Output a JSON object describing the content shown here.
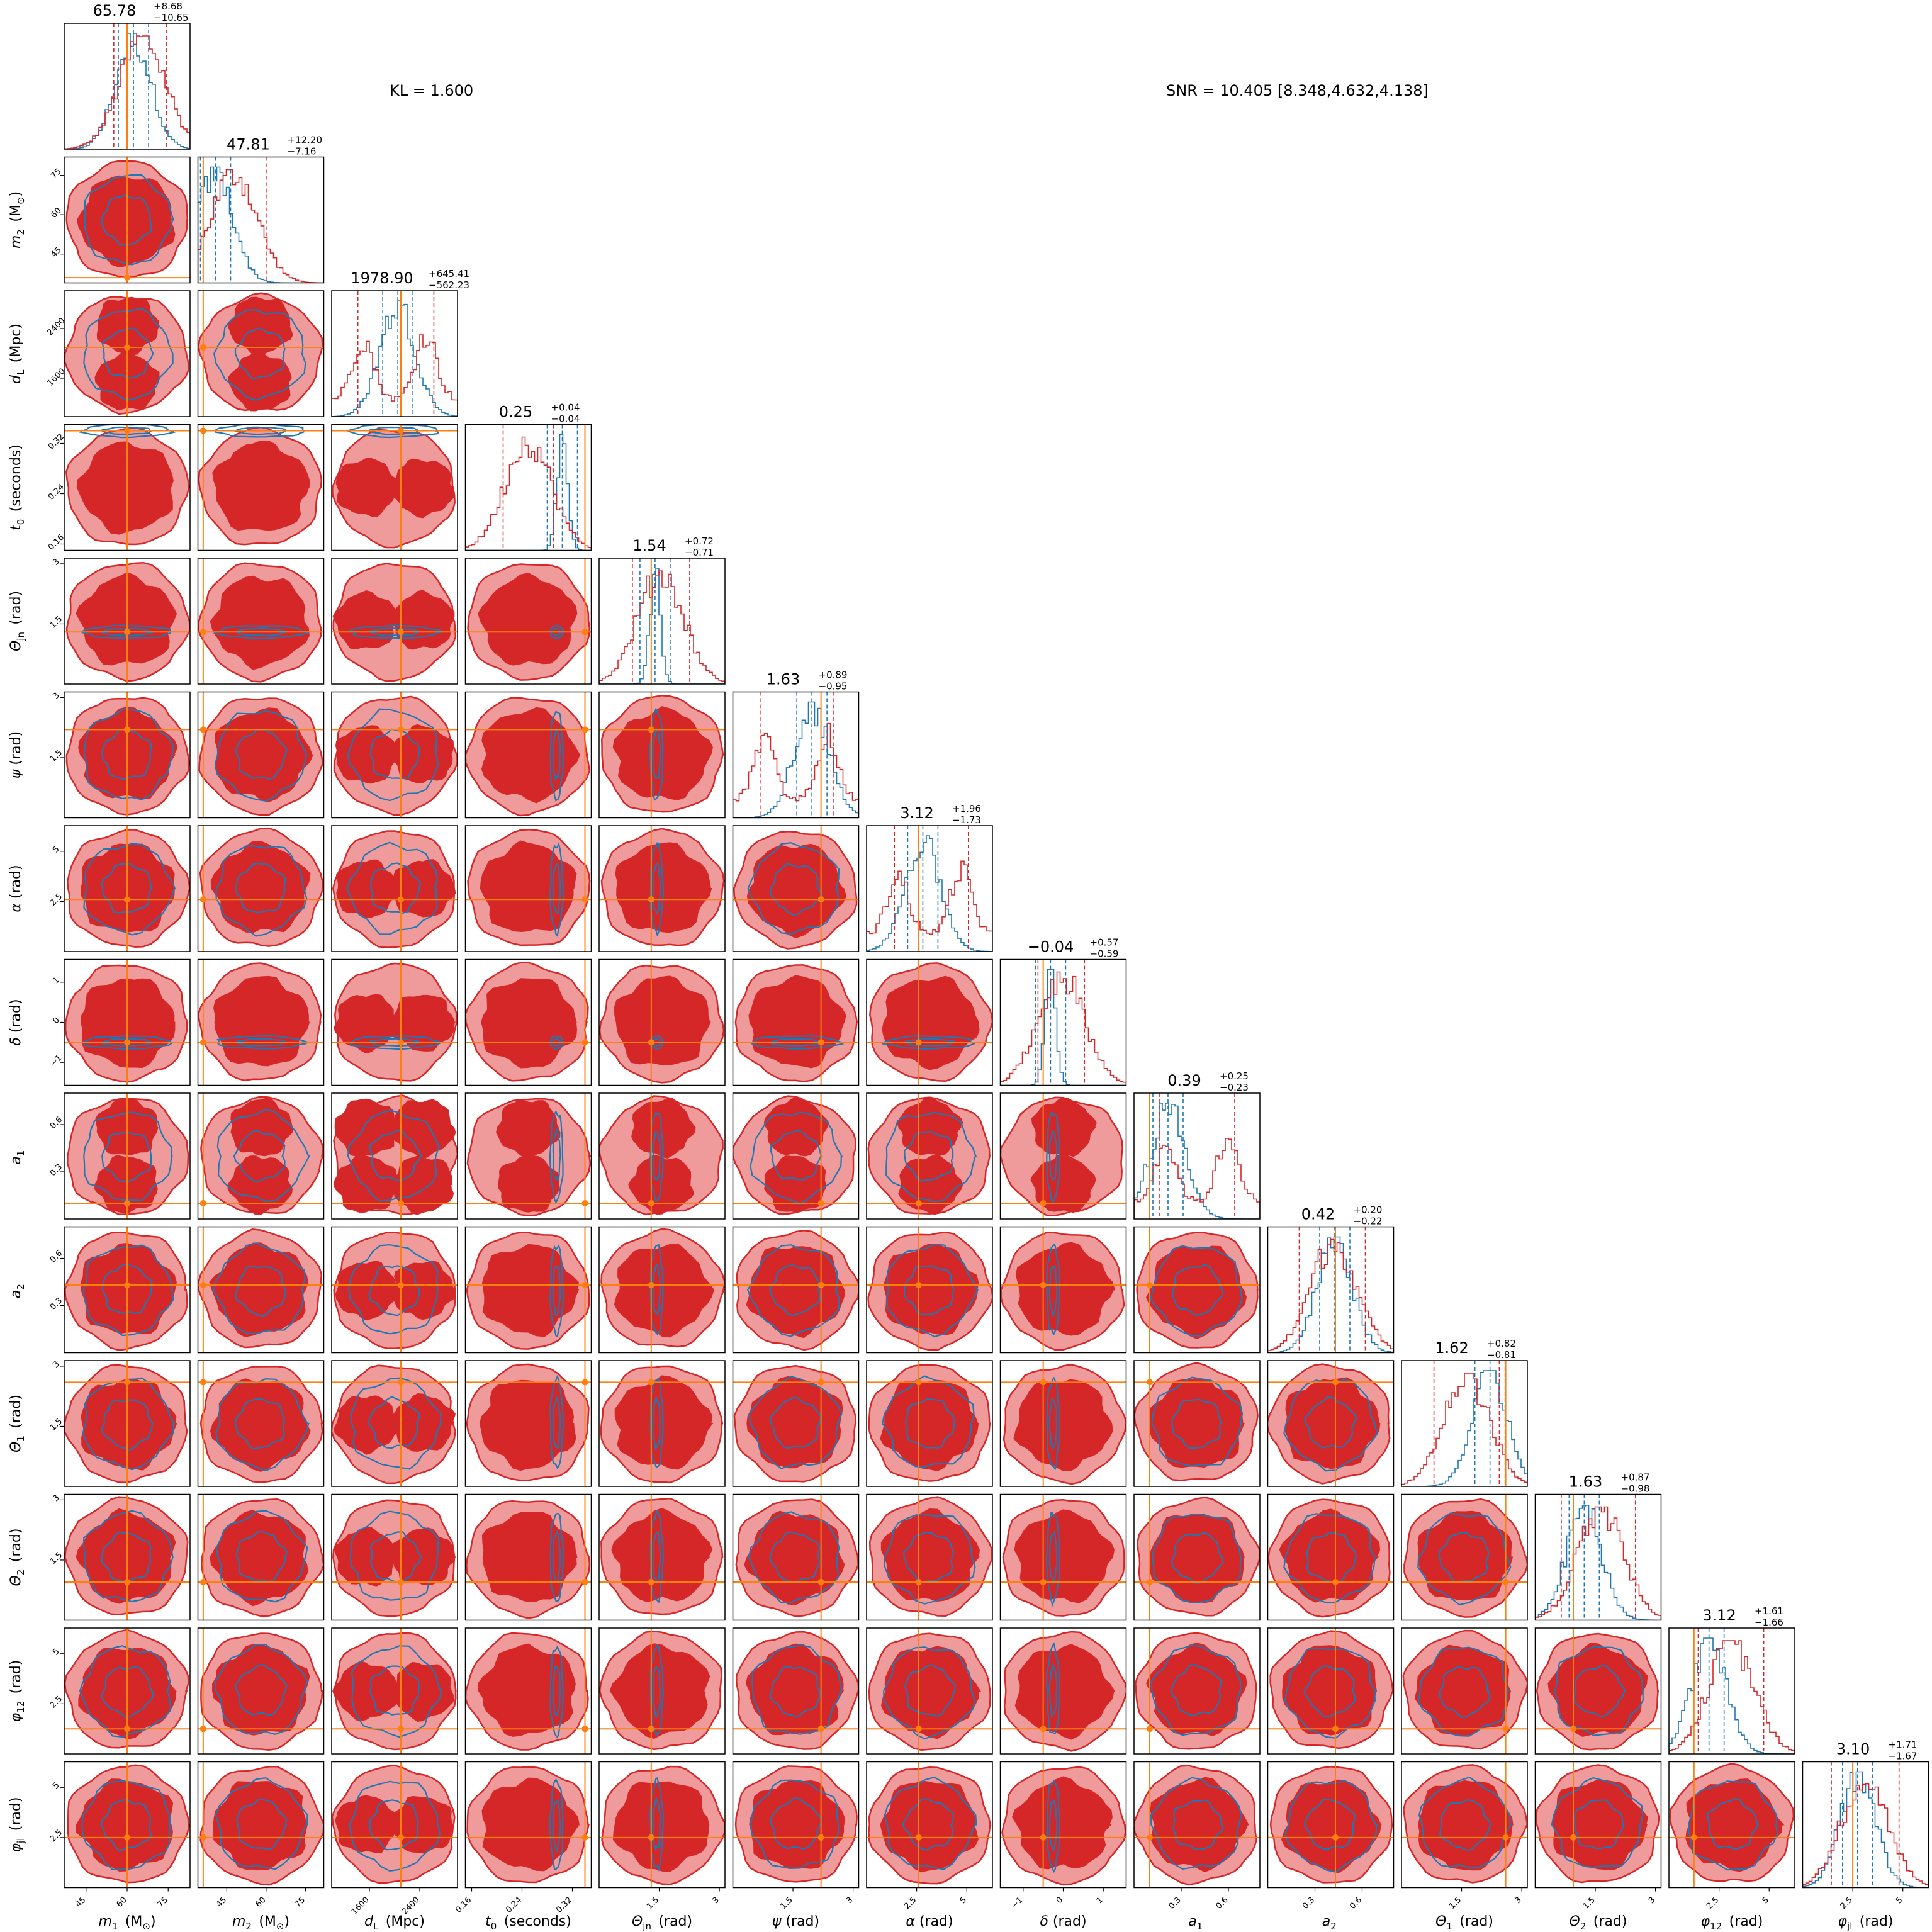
{
  "header": {
    "kl_text": "KL = 1.600",
    "snr_text": "SNR = 10.405 [8.348,4.632,4.138]"
  },
  "chart_data": {
    "type": "corner",
    "title": "",
    "colors": {
      "series_a": "#d62728",
      "series_a_light": "#ef9a9b",
      "series_b": "#1f77b4",
      "truth": "#ff7f0e"
    },
    "parameters": [
      {
        "name": "m1",
        "xlabel": "m_1 (M_⊙)",
        "ylabel": "",
        "range": [
          37,
          83
        ],
        "ticks": [
          45,
          60,
          75
        ],
        "truth": 60,
        "median": 65.78,
        "plus": "8.68",
        "minus": "10.65",
        "median_text": "65.78",
        "plus_text": "+8.68",
        "minus_text": "−10.65"
      },
      {
        "name": "m2",
        "xlabel": "m_2 (M_⊙)",
        "ylabel": "m_2 (M_⊙)",
        "range": [
          34,
          82
        ],
        "ticks": [
          45,
          60,
          75
        ],
        "truth": 36,
        "median": 47.81,
        "plus": "12.20",
        "minus": "7.16",
        "median_text": "47.81",
        "plus_text": "+12.20",
        "minus_text": "−7.16"
      },
      {
        "name": "dL",
        "xlabel": "d_L (Mpc)",
        "ylabel": "d_L (Mpc)",
        "range": [
          1000,
          3000
        ],
        "ticks": [
          1600,
          2400
        ],
        "truth": 2100,
        "median": 1978.9,
        "plus": "645.41",
        "minus": "562.23",
        "median_text": "1978.90",
        "plus_text": "+645.41",
        "minus_text": "−562.23"
      },
      {
        "name": "t0",
        "xlabel": "t_0 (seconds)",
        "ylabel": "t_0 (seconds)",
        "range": [
          0.15,
          0.35
        ],
        "ticks": [
          0.16,
          0.24,
          0.32
        ],
        "truth": 0.34,
        "median": 0.25,
        "plus": "0.04",
        "minus": "0.04",
        "median_text": "0.25",
        "plus_text": "+0.04",
        "minus_text": "−0.04"
      },
      {
        "name": "theta_jn",
        "xlabel": "Θ_jn (rad)",
        "ylabel": "Θ_jn (rad)",
        "range": [
          0,
          3.14
        ],
        "ticks": [
          1.5,
          3.0
        ],
        "truth": 1.3,
        "median": 1.54,
        "plus": "0.72",
        "minus": "0.71",
        "median_text": "1.54",
        "plus_text": "+0.72",
        "minus_text": "−0.71"
      },
      {
        "name": "psi",
        "xlabel": "ψ (rad)",
        "ylabel": "ψ (rad)",
        "range": [
          0,
          3.14
        ],
        "ticks": [
          1.5,
          3.0
        ],
        "truth": 2.2,
        "median": 1.63,
        "plus": "0.89",
        "minus": "0.95",
        "median_text": "1.63",
        "plus_text": "+0.89",
        "minus_text": "−0.95"
      },
      {
        "name": "alpha",
        "xlabel": "α (rad)",
        "ylabel": "α (rad)",
        "range": [
          0,
          6.28
        ],
        "ticks": [
          2.5,
          5.0
        ],
        "truth": 2.6,
        "median": 3.12,
        "plus": "1.96",
        "minus": "1.73",
        "median_text": "3.12",
        "plus_text": "+1.96",
        "minus_text": "−1.73"
      },
      {
        "name": "delta",
        "xlabel": "δ (rad)",
        "ylabel": "δ (rad)",
        "range": [
          -1.57,
          1.57
        ],
        "ticks": [
          -1,
          0,
          1
        ],
        "truth": -0.5,
        "median": -0.04,
        "plus": "0.57",
        "minus": "0.59",
        "median_text": "−0.04",
        "plus_text": "+0.57",
        "minus_text": "−0.59"
      },
      {
        "name": "a1",
        "xlabel": "a_1",
        "ylabel": "a_1",
        "range": [
          0,
          0.8
        ],
        "ticks": [
          0.3,
          0.6
        ],
        "truth": 0.1,
        "median": 0.39,
        "plus": "0.25",
        "minus": "0.23",
        "median_text": "0.39",
        "plus_text": "+0.25",
        "minus_text": "−0.23"
      },
      {
        "name": "a2",
        "xlabel": "a_2",
        "ylabel": "a_2",
        "range": [
          0,
          0.8
        ],
        "ticks": [
          0.3,
          0.6
        ],
        "truth": 0.43,
        "median": 0.42,
        "plus": "0.20",
        "minus": "0.22",
        "median_text": "0.42",
        "plus_text": "+0.20",
        "minus_text": "−0.22"
      },
      {
        "name": "theta1",
        "xlabel": "Θ_1 (rad)",
        "ylabel": "Θ_1 (rad)",
        "range": [
          0,
          3.14
        ],
        "ticks": [
          1.5,
          3.0
        ],
        "truth": 2.6,
        "median": 1.62,
        "plus": "0.82",
        "minus": "0.81",
        "median_text": "1.62",
        "plus_text": "+0.82",
        "minus_text": "−0.81"
      },
      {
        "name": "theta2",
        "xlabel": "Θ_2 (rad)",
        "ylabel": "Θ_2 (rad)",
        "range": [
          0,
          3.14
        ],
        "ticks": [
          1.5,
          3.0
        ],
        "truth": 0.95,
        "median": 1.63,
        "plus": "0.87",
        "minus": "0.98",
        "median_text": "1.63",
        "plus_text": "+0.87",
        "minus_text": "−0.98"
      },
      {
        "name": "phi12",
        "xlabel": "φ_12 (rad)",
        "ylabel": "φ_12 (rad)",
        "range": [
          0,
          6.28
        ],
        "ticks": [
          2.5,
          5.0
        ],
        "truth": 1.25,
        "median": 3.12,
        "plus": "1.61",
        "minus": "1.66",
        "median_text": "3.12",
        "plus_text": "+1.61",
        "minus_text": "−1.66"
      },
      {
        "name": "phi_jl",
        "xlabel": "φ_jl (rad)",
        "ylabel": "φ_jl (rad)",
        "range": [
          0,
          6.28
        ],
        "ticks": [
          2.5,
          5.0
        ],
        "truth": 2.5,
        "median": 3.1,
        "plus": "1.71",
        "minus": "1.67",
        "median_text": "3.10",
        "plus_text": "+1.71",
        "minus_text": "−1.67"
      }
    ]
  }
}
